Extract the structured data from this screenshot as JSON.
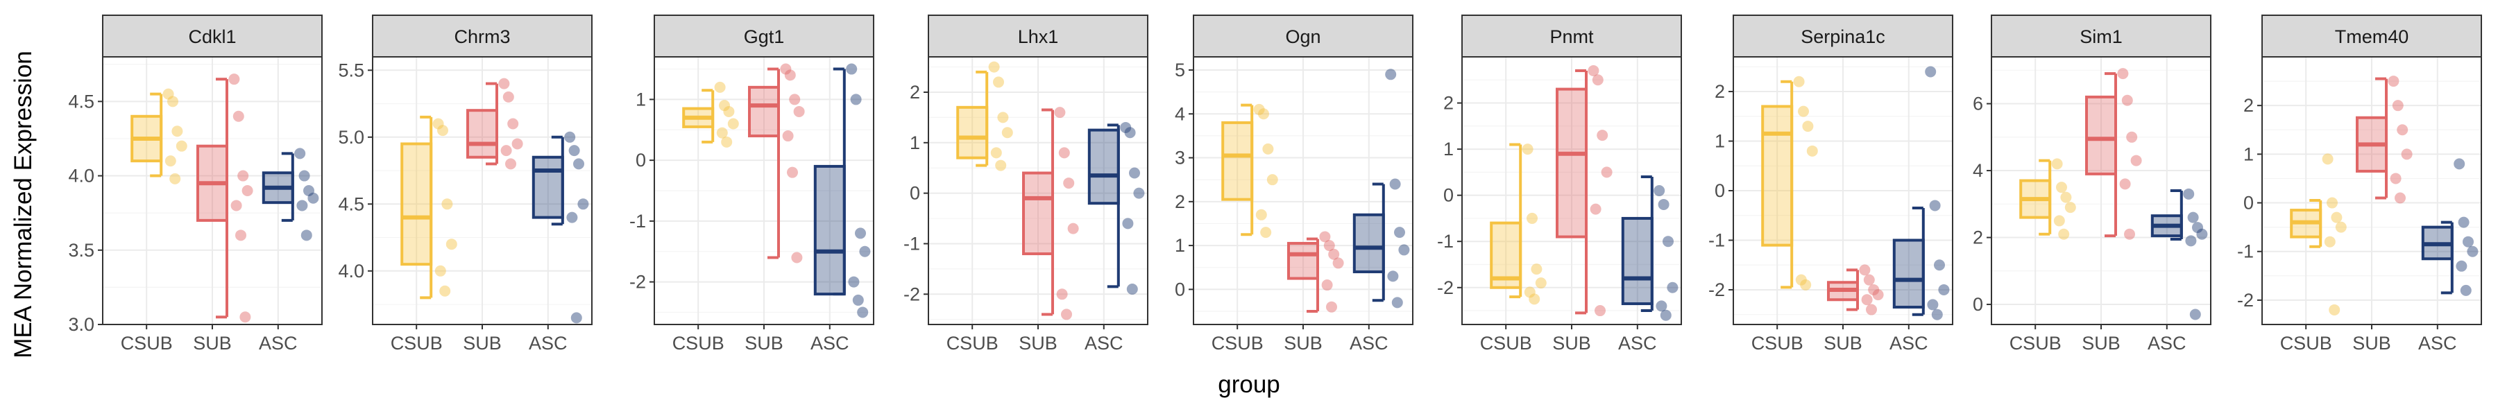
{
  "chart_data": {
    "type": "boxplot",
    "facet_by": "gene",
    "xlabel": "group",
    "ylabel": "MEA Normalized Expression",
    "groups": [
      "CSUB",
      "SUB",
      "ASC"
    ],
    "group_colors": {
      "CSUB": "#f5c242",
      "SUB": "#e06666",
      "ASC": "#1f3b73"
    },
    "panels": [
      {
        "gene": "Cdkl1",
        "ylim": [
          3.0,
          4.8
        ],
        "yticks": [
          "3.0",
          "3.5",
          "4.0",
          "4.5"
        ],
        "boxes": [
          {
            "group": "CSUB",
            "min": 4.0,
            "q1": 4.1,
            "median": 4.25,
            "q3": 4.4,
            "max": 4.55
          },
          {
            "group": "SUB",
            "min": 3.05,
            "q1": 3.7,
            "median": 3.95,
            "q3": 4.2,
            "max": 4.65
          },
          {
            "group": "ASC",
            "min": 3.7,
            "q1": 3.82,
            "median": 3.92,
            "q3": 4.02,
            "max": 4.15
          }
        ],
        "points": [
          {
            "group": "CSUB",
            "values": [
              4.55,
              4.5,
              4.3,
              4.2,
              4.1,
              3.98
            ]
          },
          {
            "group": "SUB",
            "values": [
              4.65,
              4.4,
              4.0,
              3.9,
              3.8,
              3.6,
              3.05
            ]
          },
          {
            "group": "ASC",
            "values": [
              4.15,
              4.0,
              3.9,
              3.85,
              3.8,
              3.6
            ]
          }
        ]
      },
      {
        "gene": "Chrm3",
        "ylim": [
          3.6,
          5.6
        ],
        "yticks": [
          "4.0",
          "4.5",
          "5.0",
          "5.5"
        ],
        "boxes": [
          {
            "group": "CSUB",
            "min": 3.8,
            "q1": 4.05,
            "median": 4.4,
            "q3": 4.95,
            "max": 5.15
          },
          {
            "group": "SUB",
            "min": 4.8,
            "q1": 4.85,
            "median": 4.95,
            "q3": 5.2,
            "max": 5.4
          },
          {
            "group": "ASC",
            "min": 4.35,
            "q1": 4.4,
            "median": 4.75,
            "q3": 4.85,
            "max": 5.0
          }
        ],
        "points": [
          {
            "group": "CSUB",
            "values": [
              5.1,
              5.05,
              4.5,
              4.2,
              4.0,
              3.85
            ]
          },
          {
            "group": "SUB",
            "values": [
              5.4,
              5.3,
              5.1,
              4.95,
              4.9,
              4.8
            ]
          },
          {
            "group": "ASC",
            "values": [
              5.0,
              4.9,
              4.8,
              4.5,
              4.4,
              3.65
            ]
          }
        ]
      },
      {
        "gene": "Ggt1",
        "ylim": [
          -2.7,
          1.7
        ],
        "yticks": [
          "-2",
          "-1",
          "0",
          "1"
        ],
        "boxes": [
          {
            "group": "CSUB",
            "min": 0.3,
            "q1": 0.55,
            "median": 0.7,
            "q3": 0.85,
            "max": 1.15
          },
          {
            "group": "SUB",
            "min": -1.6,
            "q1": 0.4,
            "median": 0.9,
            "q3": 1.2,
            "max": 1.5
          },
          {
            "group": "ASC",
            "min": -2.2,
            "q1": -2.2,
            "median": -1.5,
            "q3": -0.1,
            "max": 1.5
          }
        ],
        "points": [
          {
            "group": "CSUB",
            "values": [
              1.2,
              0.9,
              0.8,
              0.6,
              0.45,
              0.3
            ]
          },
          {
            "group": "SUB",
            "values": [
              1.5,
              1.4,
              1.0,
              0.8,
              0.4,
              -0.2,
              -1.6
            ]
          },
          {
            "group": "ASC",
            "values": [
              1.5,
              1.0,
              -1.2,
              -1.5,
              -2.0,
              -2.3,
              -2.5
            ]
          }
        ]
      },
      {
        "gene": "Lhx1",
        "ylim": [
          -2.6,
          2.7
        ],
        "yticks": [
          "-2",
          "-1",
          "0",
          "1",
          "2"
        ],
        "boxes": [
          {
            "group": "CSUB",
            "min": 0.55,
            "q1": 0.7,
            "median": 1.1,
            "q3": 1.7,
            "max": 2.4
          },
          {
            "group": "SUB",
            "min": -2.4,
            "q1": -1.2,
            "median": -0.1,
            "q3": 0.4,
            "max": 1.65
          },
          {
            "group": "ASC",
            "min": -1.85,
            "q1": -0.2,
            "median": 0.35,
            "q3": 1.25,
            "max": 1.35
          }
        ],
        "points": [
          {
            "group": "CSUB",
            "values": [
              2.5,
              2.2,
              1.5,
              1.2,
              0.8,
              0.55
            ]
          },
          {
            "group": "SUB",
            "values": [
              1.6,
              0.8,
              0.2,
              -0.7,
              -2.0,
              -2.4
            ]
          },
          {
            "group": "ASC",
            "values": [
              1.3,
              1.2,
              0.4,
              0.0,
              -0.6,
              -1.9
            ]
          }
        ]
      },
      {
        "gene": "Ogn",
        "ylim": [
          -0.8,
          5.3
        ],
        "yticks": [
          "0",
          "1",
          "2",
          "3",
          "4",
          "5"
        ],
        "boxes": [
          {
            "group": "CSUB",
            "min": 1.25,
            "q1": 2.05,
            "median": 3.05,
            "q3": 3.8,
            "max": 4.2
          },
          {
            "group": "SUB",
            "min": -0.5,
            "q1": 0.25,
            "median": 0.8,
            "q3": 1.05,
            "max": 1.15
          },
          {
            "group": "ASC",
            "min": -0.25,
            "q1": 0.4,
            "median": 0.95,
            "q3": 1.7,
            "max": 2.4
          }
        ],
        "points": [
          {
            "group": "CSUB",
            "values": [
              4.1,
              4.0,
              3.2,
              2.5,
              1.7,
              1.3
            ]
          },
          {
            "group": "SUB",
            "values": [
              1.2,
              1.0,
              0.8,
              0.6,
              0.1,
              -0.4
            ]
          },
          {
            "group": "ASC",
            "values": [
              4.9,
              2.4,
              1.3,
              0.9,
              0.3,
              -0.3
            ]
          }
        ]
      },
      {
        "gene": "Pnmt",
        "ylim": [
          -2.8,
          3.0
        ],
        "yticks": [
          "-2",
          "-1",
          "0",
          "1",
          "2"
        ],
        "boxes": [
          {
            "group": "CSUB",
            "min": -2.2,
            "q1": -2.0,
            "median": -1.8,
            "q3": -0.6,
            "max": 1.1
          },
          {
            "group": "SUB",
            "min": -2.55,
            "q1": -0.9,
            "median": 0.9,
            "q3": 2.3,
            "max": 2.7
          },
          {
            "group": "ASC",
            "min": -2.5,
            "q1": -2.35,
            "median": -1.8,
            "q3": -0.5,
            "max": 0.4
          }
        ],
        "points": [
          {
            "group": "CSUB",
            "values": [
              1.0,
              -0.5,
              -1.6,
              -1.9,
              -2.1,
              -2.25
            ]
          },
          {
            "group": "SUB",
            "values": [
              2.7,
              2.5,
              1.3,
              0.5,
              -0.3,
              -2.5
            ]
          },
          {
            "group": "ASC",
            "values": [
              0.1,
              -0.2,
              -1.0,
              -2.0,
              -2.4,
              -2.6
            ]
          }
        ]
      },
      {
        "gene": "Serpina1c",
        "ylim": [
          -2.7,
          2.7
        ],
        "yticks": [
          "-2",
          "-1",
          "0",
          "1",
          "2"
        ],
        "boxes": [
          {
            "group": "CSUB",
            "min": -1.95,
            "q1": -1.1,
            "median": 1.15,
            "q3": 1.7,
            "max": 2.2
          },
          {
            "group": "SUB",
            "min": -2.4,
            "q1": -2.2,
            "median": -2.0,
            "q3": -1.85,
            "max": -1.6
          },
          {
            "group": "ASC",
            "min": -2.5,
            "q1": -2.35,
            "median": -1.8,
            "q3": -1.0,
            "max": -0.35
          }
        ],
        "points": [
          {
            "group": "CSUB",
            "values": [
              2.2,
              1.6,
              1.3,
              0.8,
              -1.8,
              -1.9
            ]
          },
          {
            "group": "SUB",
            "values": [
              -1.6,
              -1.8,
              -2.0,
              -2.1,
              -2.2,
              -2.4
            ]
          },
          {
            "group": "ASC",
            "values": [
              2.4,
              -0.3,
              -1.5,
              -2.0,
              -2.3,
              -2.5
            ]
          }
        ]
      },
      {
        "gene": "Sim1",
        "ylim": [
          -0.6,
          7.4
        ],
        "yticks": [
          "0",
          "2",
          "4",
          "6"
        ],
        "boxes": [
          {
            "group": "CSUB",
            "min": 2.1,
            "q1": 2.6,
            "median": 3.15,
            "q3": 3.7,
            "max": 4.3
          },
          {
            "group": "SUB",
            "min": 2.05,
            "q1": 3.9,
            "median": 4.95,
            "q3": 6.2,
            "max": 6.9
          },
          {
            "group": "ASC",
            "min": 1.95,
            "q1": 2.05,
            "median": 2.35,
            "q3": 2.65,
            "max": 3.4
          }
        ],
        "points": [
          {
            "group": "CSUB",
            "values": [
              4.2,
              3.5,
              3.2,
              2.9,
              2.5,
              2.1
            ]
          },
          {
            "group": "SUB",
            "values": [
              6.9,
              6.1,
              5.0,
              4.3,
              3.6,
              2.1
            ]
          },
          {
            "group": "ASC",
            "values": [
              3.3,
              2.6,
              2.3,
              2.1,
              1.9,
              -0.3
            ]
          }
        ]
      },
      {
        "gene": "Tmem40",
        "ylim": [
          -2.5,
          3.0
        ],
        "yticks": [
          "-2",
          "-1",
          "0",
          "1",
          "2"
        ],
        "boxes": [
          {
            "group": "CSUB",
            "min": -0.9,
            "q1": -0.7,
            "median": -0.4,
            "q3": -0.15,
            "max": 0.05
          },
          {
            "group": "SUB",
            "min": 0.1,
            "q1": 0.65,
            "median": 1.2,
            "q3": 1.75,
            "max": 2.55
          },
          {
            "group": "ASC",
            "min": -1.85,
            "q1": -1.15,
            "median": -0.85,
            "q3": -0.5,
            "max": -0.4
          }
        ],
        "points": [
          {
            "group": "CSUB",
            "values": [
              0.9,
              0.0,
              -0.3,
              -0.5,
              -0.8,
              -2.2
            ]
          },
          {
            "group": "SUB",
            "values": [
              2.5,
              2.0,
              1.5,
              1.0,
              0.5,
              0.1
            ]
          },
          {
            "group": "ASC",
            "values": [
              0.8,
              -0.4,
              -0.8,
              -1.0,
              -1.3,
              -1.8
            ]
          }
        ]
      }
    ]
  }
}
